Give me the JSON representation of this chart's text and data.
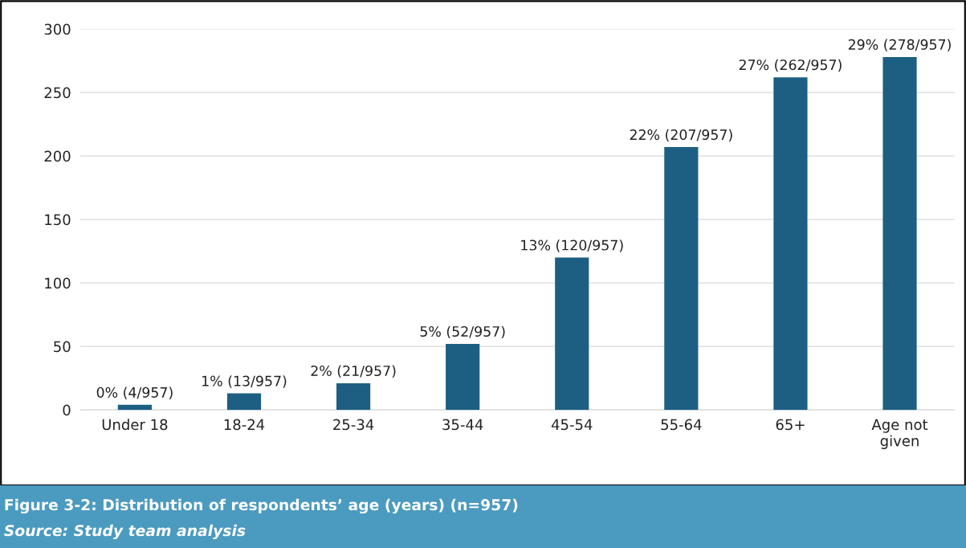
{
  "chart_data": {
    "type": "bar",
    "title": "Figure 3-2: Distribution of respondents’ age (years) (n=957)",
    "annotations": [
      "Source: Study team analysis"
    ],
    "categories": [
      "Under 18",
      "18-24",
      "25-34",
      "35-44",
      "45-54",
      "55-64",
      "65+",
      "Age not\ngiven"
    ],
    "values": [
      4,
      13,
      21,
      52,
      120,
      207,
      262,
      278
    ],
    "value_labels": [
      "0% (4/957)",
      "1% (13/957)",
      "2% (21/957)",
      "5% (52/957)",
      "13% (120/957)",
      "22% (207/957)",
      "27% (262/957)",
      "29% (278/957)"
    ],
    "color": "#1d5f83",
    "ylim": [
      0,
      300
    ],
    "yticks": [
      0,
      50,
      100,
      150,
      200,
      250,
      300
    ],
    "grid": "y",
    "legend": false
  }
}
